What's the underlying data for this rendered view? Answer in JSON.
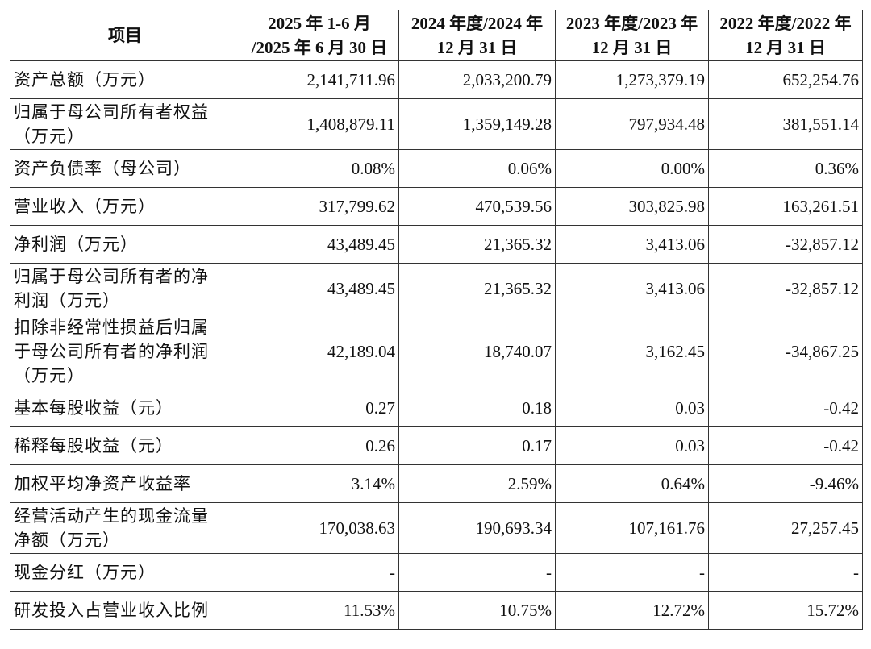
{
  "table": {
    "header": [
      [
        "项目"
      ],
      [
        "2025 年 1-6 月",
        "/2025 年 6 月 30 日"
      ],
      [
        "2024 年度/2024 年",
        "12 月 31 日"
      ],
      [
        "2023 年度/2023 年",
        "12 月 31 日"
      ],
      [
        "2022 年度/2022 年",
        "12 月 31 日"
      ]
    ],
    "rows": [
      {
        "label": [
          "资产总额（万元）"
        ],
        "values": [
          "2,141,711.96",
          "2,033,200.79",
          "1,273,379.19",
          "652,254.76"
        ]
      },
      {
        "label": [
          "归属于母公司所有者权益",
          "（万元）"
        ],
        "values": [
          "1,408,879.11",
          "1,359,149.28",
          "797,934.48",
          "381,551.14"
        ]
      },
      {
        "label": [
          "资产负债率（母公司）"
        ],
        "values": [
          "0.08%",
          "0.06%",
          "0.00%",
          "0.36%"
        ]
      },
      {
        "label": [
          "营业收入（万元）"
        ],
        "values": [
          "317,799.62",
          "470,539.56",
          "303,825.98",
          "163,261.51"
        ]
      },
      {
        "label": [
          "净利润（万元）"
        ],
        "values": [
          "43,489.45",
          "21,365.32",
          "3,413.06",
          "-32,857.12"
        ]
      },
      {
        "label": [
          "归属于母公司所有者的净",
          "利润（万元）"
        ],
        "values": [
          "43,489.45",
          "21,365.32",
          "3,413.06",
          "-32,857.12"
        ]
      },
      {
        "label": [
          "扣除非经常性损益后归属",
          "于母公司所有者的净利润",
          "（万元）"
        ],
        "values": [
          "42,189.04",
          "18,740.07",
          "3,162.45",
          "-34,867.25"
        ]
      },
      {
        "label": [
          "基本每股收益（元）"
        ],
        "values": [
          "0.27",
          "0.18",
          "0.03",
          "-0.42"
        ]
      },
      {
        "label": [
          "稀释每股收益（元）"
        ],
        "values": [
          "0.26",
          "0.17",
          "0.03",
          "-0.42"
        ]
      },
      {
        "label": [
          "加权平均净资产收益率"
        ],
        "values": [
          "3.14%",
          "2.59%",
          "0.64%",
          "-9.46%"
        ]
      },
      {
        "label": [
          "经营活动产生的现金流量",
          "净额（万元）"
        ],
        "values": [
          "170,038.63",
          "190,693.34",
          "107,161.76",
          "27,257.45"
        ]
      },
      {
        "label": [
          "现金分红（万元）"
        ],
        "values": [
          "-",
          "-",
          "-",
          "-"
        ]
      },
      {
        "label": [
          "研发投入占营业收入比例"
        ],
        "values": [
          "11.53%",
          "10.75%",
          "12.72%",
          "15.72%"
        ]
      }
    ]
  }
}
